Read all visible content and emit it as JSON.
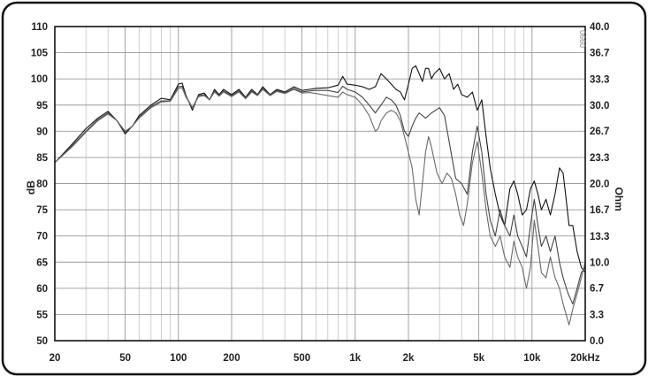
{
  "chart_data": {
    "type": "line",
    "title": "",
    "xlabel": "",
    "ylabel_left": "dB",
    "ylabel_right": "Ohm",
    "x_scale": "log",
    "xlim": [
      20,
      20000
    ],
    "ylim_left": [
      50,
      110
    ],
    "ylim_right": [
      0.0,
      40.0
    ],
    "grid": true,
    "legend": "none",
    "annotation": "0660",
    "x_ticks": [
      {
        "value": 20,
        "label": "20"
      },
      {
        "value": 50,
        "label": "50"
      },
      {
        "value": 100,
        "label": "100"
      },
      {
        "value": 200,
        "label": "200"
      },
      {
        "value": 500,
        "label": "500"
      },
      {
        "value": 1000,
        "label": "1k"
      },
      {
        "value": 2000,
        "label": "2k"
      },
      {
        "value": 5000,
        "label": "5k"
      },
      {
        "value": 10000,
        "label": "10k"
      },
      {
        "value": 20000,
        "label": "20kHz"
      }
    ],
    "y_ticks_left": [
      "110",
      "105",
      "100",
      "95",
      "90",
      "85",
      "80",
      "75",
      "70",
      "65",
      "60",
      "55",
      "50"
    ],
    "y_ticks_right": [
      "40.0",
      "36.7",
      "33.3",
      "30.0",
      "26.7",
      "23.3",
      "20.0",
      "16.7",
      "13.3",
      "10.0",
      "6.7",
      "3.3",
      "0.0"
    ],
    "series": [
      {
        "color": "#111111",
        "points": [
          [
            20,
            84
          ],
          [
            25,
            87.5
          ],
          [
            30,
            90.5
          ],
          [
            35,
            92.5
          ],
          [
            40,
            93.8
          ],
          [
            45,
            92
          ],
          [
            50,
            89.5
          ],
          [
            55,
            91
          ],
          [
            60,
            93
          ],
          [
            70,
            95
          ],
          [
            80,
            96.3
          ],
          [
            90,
            96
          ],
          [
            100,
            99
          ],
          [
            105,
            99.2
          ],
          [
            110,
            97
          ],
          [
            120,
            94
          ],
          [
            130,
            97
          ],
          [
            140,
            97.3
          ],
          [
            150,
            96
          ],
          [
            160,
            98
          ],
          [
            170,
            97
          ],
          [
            180,
            98
          ],
          [
            200,
            97
          ],
          [
            220,
            98
          ],
          [
            240,
            96.5
          ],
          [
            260,
            98
          ],
          [
            280,
            97
          ],
          [
            300,
            98.5
          ],
          [
            330,
            97
          ],
          [
            360,
            98
          ],
          [
            400,
            97.5
          ],
          [
            450,
            98.5
          ],
          [
            500,
            97.8
          ],
          [
            550,
            98
          ],
          [
            600,
            98.2
          ],
          [
            700,
            98.3
          ],
          [
            800,
            98.8
          ],
          [
            850,
            100.5
          ],
          [
            900,
            99
          ],
          [
            1000,
            98.8
          ],
          [
            1100,
            98.5
          ],
          [
            1200,
            98
          ],
          [
            1300,
            98.5
          ],
          [
            1400,
            101
          ],
          [
            1500,
            100
          ],
          [
            1600,
            99
          ],
          [
            1700,
            98
          ],
          [
            1800,
            97.5
          ],
          [
            1900,
            96
          ],
          [
            2000,
            99
          ],
          [
            2100,
            102
          ],
          [
            2200,
            102.5
          ],
          [
            2300,
            101
          ],
          [
            2400,
            99.5
          ],
          [
            2500,
            102
          ],
          [
            2600,
            102
          ],
          [
            2700,
            100
          ],
          [
            2800,
            101
          ],
          [
            3000,
            102
          ],
          [
            3200,
            100
          ],
          [
            3400,
            101
          ],
          [
            3600,
            98
          ],
          [
            3800,
            99
          ],
          [
            4000,
            97
          ],
          [
            4300,
            96.5
          ],
          [
            4600,
            97.5
          ],
          [
            4900,
            94
          ],
          [
            5200,
            96
          ],
          [
            5500,
            89
          ],
          [
            5800,
            83
          ],
          [
            6200,
            78
          ],
          [
            6600,
            74
          ],
          [
            7000,
            72
          ],
          [
            7500,
            79
          ],
          [
            7900,
            80.5
          ],
          [
            8300,
            78
          ],
          [
            8800,
            74
          ],
          [
            9300,
            75
          ],
          [
            9800,
            79
          ],
          [
            10300,
            80.5
          ],
          [
            10800,
            78
          ],
          [
            11300,
            75
          ],
          [
            12000,
            77
          ],
          [
            12700,
            74
          ],
          [
            13500,
            78
          ],
          [
            14300,
            83
          ],
          [
            15000,
            82
          ],
          [
            15600,
            77
          ],
          [
            16200,
            72
          ],
          [
            17000,
            72
          ],
          [
            18000,
            67
          ],
          [
            19000,
            64
          ],
          [
            20000,
            63
          ]
        ]
      },
      {
        "color": "#444444",
        "points": [
          [
            20,
            84
          ],
          [
            25,
            87.2
          ],
          [
            30,
            90
          ],
          [
            35,
            92.2
          ],
          [
            40,
            93.5
          ],
          [
            45,
            92
          ],
          [
            50,
            89.8
          ],
          [
            55,
            91
          ],
          [
            60,
            92.7
          ],
          [
            70,
            94.7
          ],
          [
            80,
            95.8
          ],
          [
            90,
            95.8
          ],
          [
            100,
            98.5
          ],
          [
            105,
            98.6
          ],
          [
            110,
            96.8
          ],
          [
            120,
            94.5
          ],
          [
            130,
            96.8
          ],
          [
            140,
            97
          ],
          [
            150,
            96
          ],
          [
            160,
            97.7
          ],
          [
            170,
            96.8
          ],
          [
            180,
            97.7
          ],
          [
            200,
            96.8
          ],
          [
            220,
            97.7
          ],
          [
            240,
            96.4
          ],
          [
            260,
            97.7
          ],
          [
            280,
            96.9
          ],
          [
            300,
            98.2
          ],
          [
            330,
            96.9
          ],
          [
            360,
            97.8
          ],
          [
            400,
            97.3
          ],
          [
            450,
            98.2
          ],
          [
            500,
            97.5
          ],
          [
            550,
            97.7
          ],
          [
            600,
            97.8
          ],
          [
            700,
            97.8
          ],
          [
            800,
            97.4
          ],
          [
            850,
            98.6
          ],
          [
            900,
            98
          ],
          [
            1000,
            97.5
          ],
          [
            1100,
            96.5
          ],
          [
            1200,
            95
          ],
          [
            1300,
            93.5
          ],
          [
            1400,
            95
          ],
          [
            1500,
            96.5
          ],
          [
            1600,
            96
          ],
          [
            1700,
            95
          ],
          [
            1800,
            93
          ],
          [
            1900,
            90
          ],
          [
            2000,
            89
          ],
          [
            2100,
            91
          ],
          [
            2200,
            92.5
          ],
          [
            2300,
            93.5
          ],
          [
            2500,
            92.5
          ],
          [
            2700,
            93.5
          ],
          [
            3000,
            94.5
          ],
          [
            3200,
            93
          ],
          [
            3400,
            88
          ],
          [
            3700,
            81
          ],
          [
            4000,
            80
          ],
          [
            4300,
            78
          ],
          [
            4600,
            86
          ],
          [
            4900,
            91
          ],
          [
            5200,
            86
          ],
          [
            5500,
            78
          ],
          [
            5800,
            73
          ],
          [
            6200,
            70
          ],
          [
            6600,
            75
          ],
          [
            7000,
            72
          ],
          [
            7500,
            70
          ],
          [
            7900,
            74
          ],
          [
            8300,
            70
          ],
          [
            8800,
            68
          ],
          [
            9300,
            66
          ],
          [
            9800,
            72
          ],
          [
            10300,
            77
          ],
          [
            10800,
            72
          ],
          [
            11300,
            68
          ],
          [
            12000,
            70
          ],
          [
            12700,
            67
          ],
          [
            13500,
            70
          ],
          [
            14300,
            65
          ],
          [
            15000,
            62
          ],
          [
            16000,
            59
          ],
          [
            17000,
            57
          ],
          [
            18000,
            60
          ],
          [
            19000,
            63
          ],
          [
            20000,
            64
          ]
        ]
      },
      {
        "color": "#6a6a6a",
        "points": [
          [
            20,
            84
          ],
          [
            25,
            87
          ],
          [
            30,
            89.8
          ],
          [
            35,
            92
          ],
          [
            40,
            93.3
          ],
          [
            45,
            92
          ],
          [
            50,
            90
          ],
          [
            55,
            91
          ],
          [
            60,
            92.5
          ],
          [
            70,
            94.5
          ],
          [
            80,
            95.6
          ],
          [
            90,
            95.7
          ],
          [
            100,
            98.2
          ],
          [
            105,
            98.3
          ],
          [
            110,
            96.6
          ],
          [
            120,
            94.5
          ],
          [
            130,
            96.6
          ],
          [
            140,
            96.8
          ],
          [
            150,
            96
          ],
          [
            160,
            97.5
          ],
          [
            170,
            96.7
          ],
          [
            180,
            97.5
          ],
          [
            200,
            96.6
          ],
          [
            220,
            97.5
          ],
          [
            240,
            96.2
          ],
          [
            260,
            97.5
          ],
          [
            280,
            96.8
          ],
          [
            300,
            98
          ],
          [
            330,
            96.8
          ],
          [
            360,
            97.6
          ],
          [
            400,
            97.2
          ],
          [
            450,
            98
          ],
          [
            500,
            97.3
          ],
          [
            550,
            97.4
          ],
          [
            600,
            97.2
          ],
          [
            700,
            96.8
          ],
          [
            800,
            96.5
          ],
          [
            850,
            97.5
          ],
          [
            900,
            97
          ],
          [
            1000,
            96.5
          ],
          [
            1100,
            95
          ],
          [
            1200,
            93
          ],
          [
            1300,
            90
          ],
          [
            1350,
            90.5
          ],
          [
            1400,
            92
          ],
          [
            1500,
            93.5
          ],
          [
            1600,
            94
          ],
          [
            1700,
            93.5
          ],
          [
            1800,
            92
          ],
          [
            1900,
            89
          ],
          [
            2000,
            86
          ],
          [
            2100,
            83
          ],
          [
            2200,
            77
          ],
          [
            2300,
            74
          ],
          [
            2400,
            80
          ],
          [
            2500,
            86
          ],
          [
            2600,
            89
          ],
          [
            2700,
            87
          ],
          [
            2900,
            82
          ],
          [
            3100,
            80
          ],
          [
            3300,
            82
          ],
          [
            3500,
            81
          ],
          [
            3700,
            78
          ],
          [
            3900,
            74
          ],
          [
            4100,
            72
          ],
          [
            4300,
            76
          ],
          [
            4600,
            84
          ],
          [
            4900,
            88
          ],
          [
            5200,
            82
          ],
          [
            5500,
            75
          ],
          [
            5800,
            70
          ],
          [
            6200,
            68
          ],
          [
            6600,
            70
          ],
          [
            7000,
            66
          ],
          [
            7500,
            64
          ],
          [
            7900,
            69
          ],
          [
            8300,
            66
          ],
          [
            8800,
            64
          ],
          [
            9300,
            60
          ],
          [
            9800,
            64
          ],
          [
            10300,
            73
          ],
          [
            10800,
            68
          ],
          [
            11300,
            63
          ],
          [
            12000,
            62
          ],
          [
            12700,
            66
          ],
          [
            13500,
            62
          ],
          [
            14300,
            60
          ],
          [
            15000,
            57
          ],
          [
            15600,
            55
          ],
          [
            16200,
            53
          ],
          [
            17000,
            56
          ],
          [
            18000,
            59
          ],
          [
            19000,
            62
          ],
          [
            20000,
            65
          ]
        ]
      }
    ]
  }
}
